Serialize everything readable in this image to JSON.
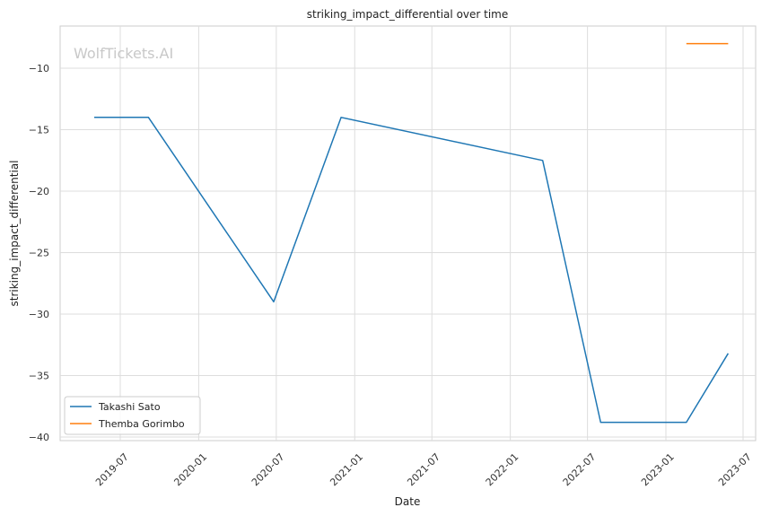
{
  "chart_data": {
    "type": "line",
    "title": "striking_impact_differential over time",
    "xlabel": "Date",
    "ylabel": "striking_impact_differential",
    "watermark": "WolfTickets.AI",
    "x_ticks": [
      "2019-07",
      "2020-01",
      "2020-07",
      "2021-01",
      "2021-07",
      "2022-01",
      "2022-07",
      "2023-01",
      "2023-07"
    ],
    "y_ticks": [
      -10,
      -15,
      -20,
      -25,
      -30,
      -35,
      -40
    ],
    "ylim": [
      -40.4,
      -6.7
    ],
    "grid": true,
    "legend_position": "lower-left",
    "series": [
      {
        "name": "Takashi Sato",
        "color": "#1f77b4",
        "points": [
          {
            "x": "2019-05-01",
            "y": -14.0
          },
          {
            "x": "2019-09-05",
            "y": -14.0
          },
          {
            "x": "2020-06-25",
            "y": -29.0
          },
          {
            "x": "2020-11-30",
            "y": -14.0
          },
          {
            "x": "2022-03-18",
            "y": -17.5
          },
          {
            "x": "2022-08-01",
            "y": -38.8
          },
          {
            "x": "2023-02-18",
            "y": -38.8
          },
          {
            "x": "2023-05-27",
            "y": -33.2
          }
        ]
      },
      {
        "name": "Themba Gorimbo",
        "color": "#ff7f0e",
        "points": [
          {
            "x": "2023-02-18",
            "y": -8.0
          },
          {
            "x": "2023-05-27",
            "y": -8.0
          }
        ]
      }
    ]
  }
}
